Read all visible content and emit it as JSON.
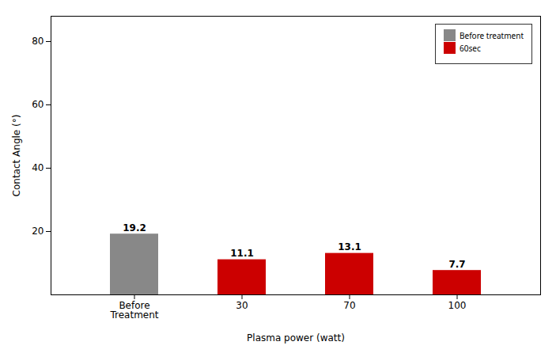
{
  "chart_data": {
    "type": "bar",
    "categories": [
      "Before\nTreatment",
      "30",
      "70",
      "100"
    ],
    "series": [
      {
        "name": "Before treatment",
        "color": "#888888",
        "values": [
          19.2,
          null,
          null,
          null
        ]
      },
      {
        "name": "60sec",
        "color": "#cc0000",
        "values": [
          null,
          11.1,
          13.1,
          7.7
        ]
      }
    ],
    "xlabel": "Plasma power (watt)",
    "ylabel": "Contact Angle (°)",
    "ylim": [
      0,
      88
    ],
    "yticks": [
      20,
      40,
      60,
      80
    ],
    "data_labels": true,
    "legend": "upper right",
    "grid": false
  }
}
